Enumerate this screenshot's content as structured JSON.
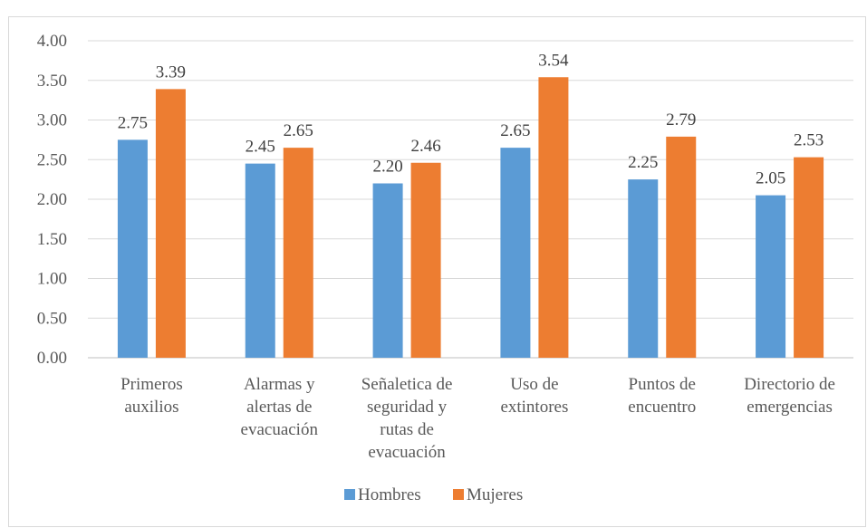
{
  "chart_data": {
    "type": "bar",
    "categories": [
      [
        "Primeros",
        "auxilios"
      ],
      [
        "Alarmas y",
        "alertas de",
        "evacuación"
      ],
      [
        "Señaletica de",
        "seguridad y",
        "rutas de",
        "evacuación"
      ],
      [
        "Uso de",
        "extintores"
      ],
      [
        "Puntos de",
        "encuentro"
      ],
      [
        "Directorio de",
        "emergencias"
      ]
    ],
    "series": [
      {
        "name": "Hombres",
        "values": [
          2.75,
          2.45,
          2.2,
          2.65,
          2.25,
          2.05
        ],
        "labels": [
          "2.75",
          "2.45",
          "2.20",
          "2.65",
          "2.25",
          "2.05"
        ],
        "color": "#5b9bd5"
      },
      {
        "name": "Mujeres",
        "values": [
          3.39,
          2.65,
          2.46,
          3.54,
          2.79,
          2.53
        ],
        "labels": [
          "3.39",
          "2.65",
          "2.46",
          "3.54",
          "2.79",
          "2.53"
        ],
        "color": "#ed7d31"
      }
    ],
    "yticks": [
      "0.00",
      "0.50",
      "1.00",
      "1.50",
      "2.00",
      "2.50",
      "3.00",
      "3.50",
      "4.00"
    ],
    "ylim": [
      0,
      4
    ],
    "grid": true,
    "legend_position": "bottom",
    "gridline_color": "#d9d9d9",
    "axis_color": "#bfbfbf"
  }
}
